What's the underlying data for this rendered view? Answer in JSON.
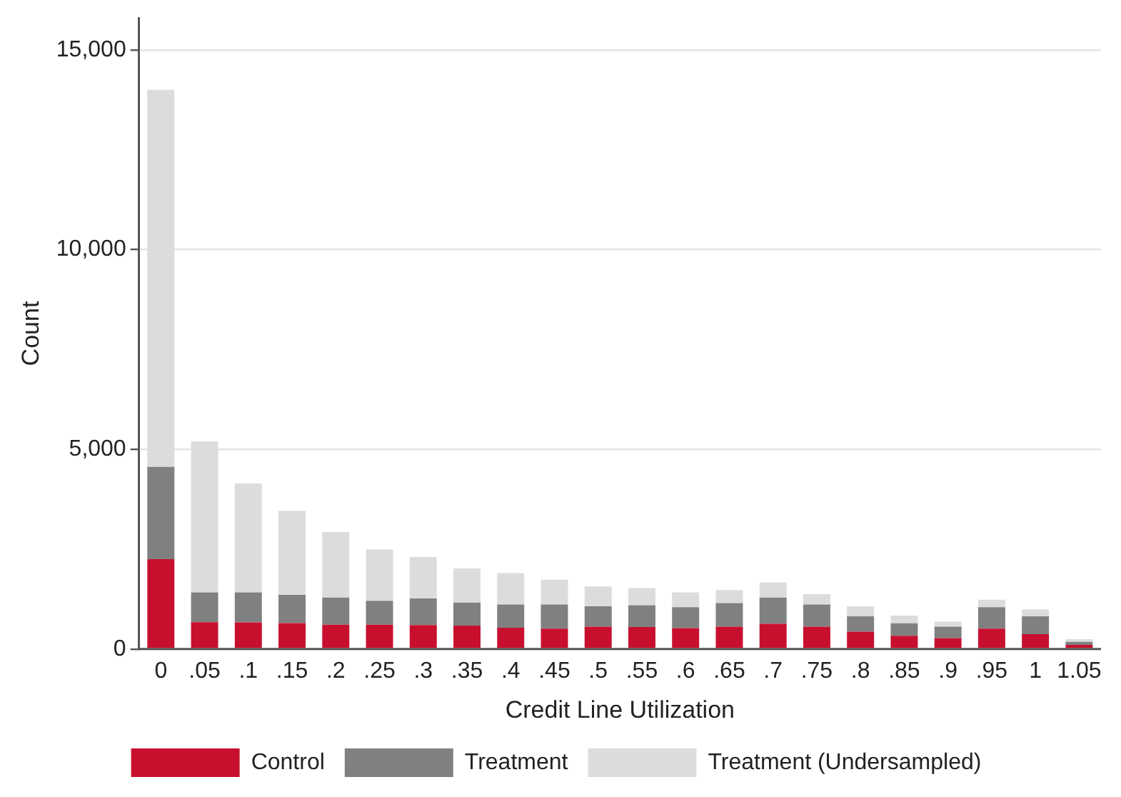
{
  "chart_data": {
    "type": "bar",
    "stacked": true,
    "xlabel": "Credit Line Utilization",
    "ylabel": "Count",
    "categories": [
      "0",
      ".05",
      ".1",
      ".15",
      ".2",
      ".25",
      ".3",
      ".35",
      ".4",
      ".45",
      ".5",
      ".55",
      ".6",
      ".65",
      ".7",
      ".75",
      ".8",
      ".85",
      ".9",
      ".95",
      "1",
      "1.05"
    ],
    "series": [
      {
        "name": "Control",
        "color": "#c8102e",
        "values": [
          2250,
          670,
          665,
          650,
          610,
          610,
          600,
          585,
          535,
          510,
          560,
          550,
          525,
          560,
          630,
          560,
          435,
          330,
          275,
          510,
          370,
          105
        ]
      },
      {
        "name": "Treatment",
        "color": "#808080",
        "values": [
          2310,
          750,
          755,
          705,
          680,
          600,
          665,
          580,
          580,
          605,
          510,
          545,
          520,
          590,
          660,
          555,
          385,
          315,
          285,
          535,
          450,
          75
        ]
      },
      {
        "name": "Treatment (Undersampled)",
        "color": "#dcdcdc",
        "values": [
          9440,
          3780,
          2725,
          2105,
          1640,
          1285,
          1040,
          850,
          785,
          620,
          495,
          430,
          375,
          325,
          375,
          260,
          250,
          190,
          125,
          190,
          175,
          65
        ]
      }
    ],
    "ylim": [
      0,
      15800
    ],
    "yticks": [
      {
        "value": 0,
        "label": "0"
      },
      {
        "value": 5000,
        "label": "5,000"
      },
      {
        "value": 10000,
        "label": "10,000"
      },
      {
        "value": 15000,
        "label": "15,000"
      }
    ],
    "grid": "y",
    "legend": "bottom"
  }
}
